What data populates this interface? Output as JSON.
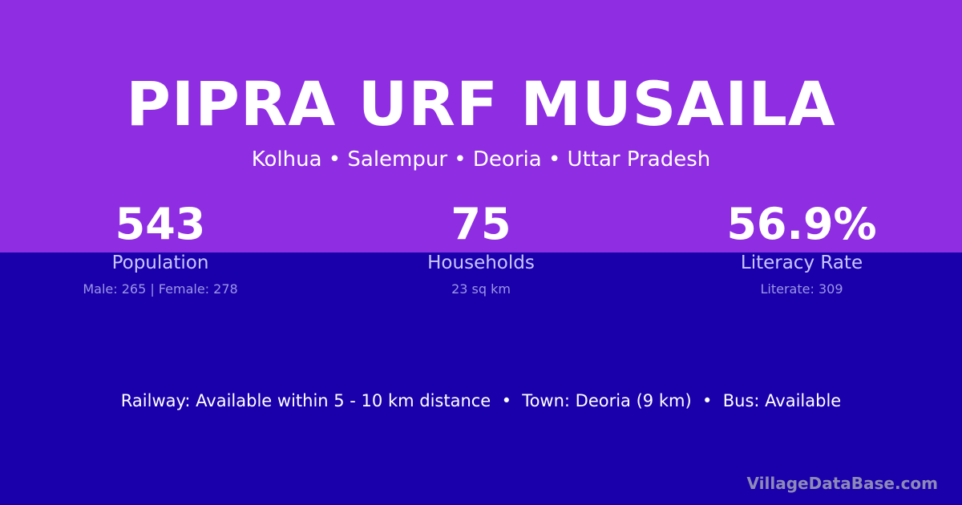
{
  "header": {
    "title": "PIPRA URF MUSAILA",
    "location": "Kolhua • Salempur • Deoria • Uttar Pradesh"
  },
  "stats": [
    {
      "value": "543",
      "label": "Population",
      "detail": "Male: 265 | Female: 278"
    },
    {
      "value": "75",
      "label": "Households",
      "detail": "23 sq km"
    },
    {
      "value": "56.9%",
      "label": "Literacy Rate",
      "detail": "Literate: 309"
    }
  ],
  "info_line": "Railway: Available within 5 - 10 km distance  •  Town: Deoria (9 km)  •  Bus: Available",
  "brand": "VillageDataBase.com",
  "colors": {
    "top_background": "#8e2de2",
    "bottom_background": "#1a00ab"
  }
}
